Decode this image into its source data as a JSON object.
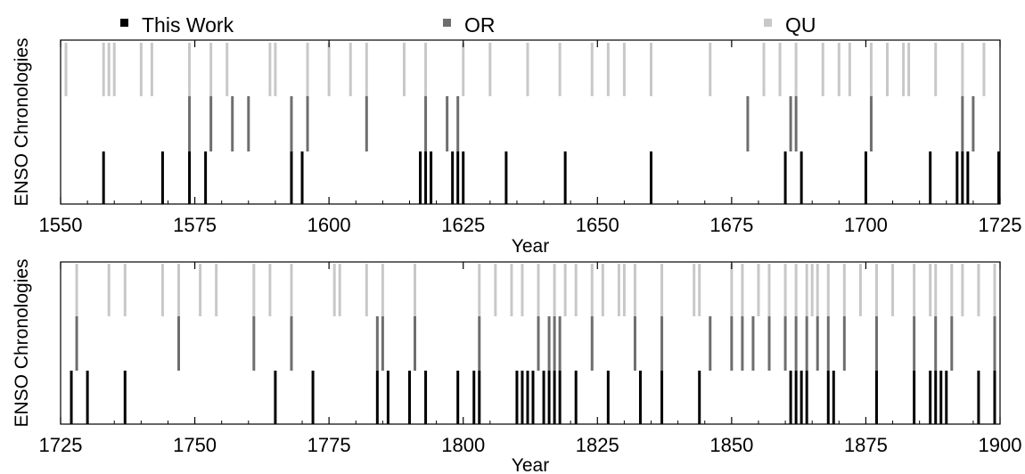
{
  "legend": {
    "items": [
      {
        "label": "This Work",
        "color": "#000000"
      },
      {
        "label": "OR",
        "color": "#6e6e6e"
      },
      {
        "label": "QU",
        "color": "#c8c8c8"
      }
    ]
  },
  "chart_data": [
    {
      "type": "event-raster",
      "title": "",
      "xlabel": "Year",
      "ylabel": "ENSO Chronologies",
      "xlim": [
        1550,
        1725
      ],
      "xticks": [
        "1550",
        "1575",
        "1600",
        "1625",
        "1650",
        "1675",
        "1700",
        "1725"
      ],
      "grid": false,
      "series": [
        {
          "name": "This Work",
          "color": "#000000",
          "years": [
            1558,
            1569,
            1574,
            1577,
            1593,
            1595,
            1617,
            1618,
            1619,
            1623,
            1624,
            1625,
            1633,
            1644,
            1660,
            1685,
            1688,
            1700,
            1712,
            1717,
            1718,
            1719,
            1725
          ]
        },
        {
          "name": "OR",
          "color": "#6e6e6e",
          "years": [
            1574,
            1578,
            1582,
            1585,
            1593,
            1596,
            1607,
            1618,
            1622,
            1624,
            1678,
            1686,
            1687,
            1701,
            1718,
            1720
          ]
        },
        {
          "name": "QU",
          "color": "#c8c8c8",
          "years": [
            1551,
            1558,
            1559,
            1560,
            1565,
            1567,
            1574,
            1578,
            1581,
            1589,
            1590,
            1596,
            1600,
            1604,
            1607,
            1614,
            1618,
            1625,
            1630,
            1637,
            1643,
            1649,
            1652,
            1655,
            1660,
            1671,
            1681,
            1684,
            1687,
            1692,
            1695,
            1697,
            1701,
            1704,
            1707,
            1708,
            1713,
            1718,
            1722
          ]
        }
      ]
    },
    {
      "type": "event-raster",
      "title": "",
      "xlabel": "Year",
      "ylabel": "ENSO Chronologies",
      "xlim": [
        1725,
        1900
      ],
      "xticks": [
        "1725",
        "1750",
        "1775",
        "1800",
        "1825",
        "1850",
        "1875",
        "1900"
      ],
      "grid": false,
      "series": [
        {
          "name": "This Work",
          "color": "#000000",
          "years": [
            1727,
            1730,
            1737,
            1765,
            1772,
            1784,
            1786,
            1790,
            1793,
            1799,
            1802,
            1803,
            1810,
            1811,
            1812,
            1813,
            1815,
            1816,
            1817,
            1818,
            1821,
            1827,
            1833,
            1837,
            1844,
            1861,
            1862,
            1863,
            1864,
            1868,
            1869,
            1877,
            1884,
            1887,
            1888,
            1889,
            1890,
            1896,
            1899
          ]
        },
        {
          "name": "OR",
          "color": "#6e6e6e",
          "years": [
            1728,
            1747,
            1761,
            1768,
            1784,
            1785,
            1791,
            1803,
            1814,
            1816,
            1817,
            1818,
            1824,
            1832,
            1837,
            1846,
            1850,
            1852,
            1854,
            1857,
            1860,
            1862,
            1864,
            1866,
            1868,
            1871,
            1877,
            1884,
            1888,
            1891,
            1899
          ]
        },
        {
          "name": "QU",
          "color": "#c8c8c8",
          "years": [
            1728,
            1734,
            1737,
            1744,
            1747,
            1751,
            1754,
            1761,
            1764,
            1768,
            1776,
            1777,
            1782,
            1785,
            1791,
            1803,
            1806,
            1809,
            1811,
            1814,
            1817,
            1819,
            1821,
            1824,
            1826,
            1829,
            1830,
            1832,
            1837,
            1843,
            1844,
            1850,
            1852,
            1855,
            1857,
            1860,
            1862,
            1864,
            1865,
            1866,
            1868,
            1871,
            1874,
            1877,
            1880,
            1884,
            1887,
            1888,
            1891,
            1893,
            1896,
            1899
          ]
        }
      ]
    }
  ]
}
